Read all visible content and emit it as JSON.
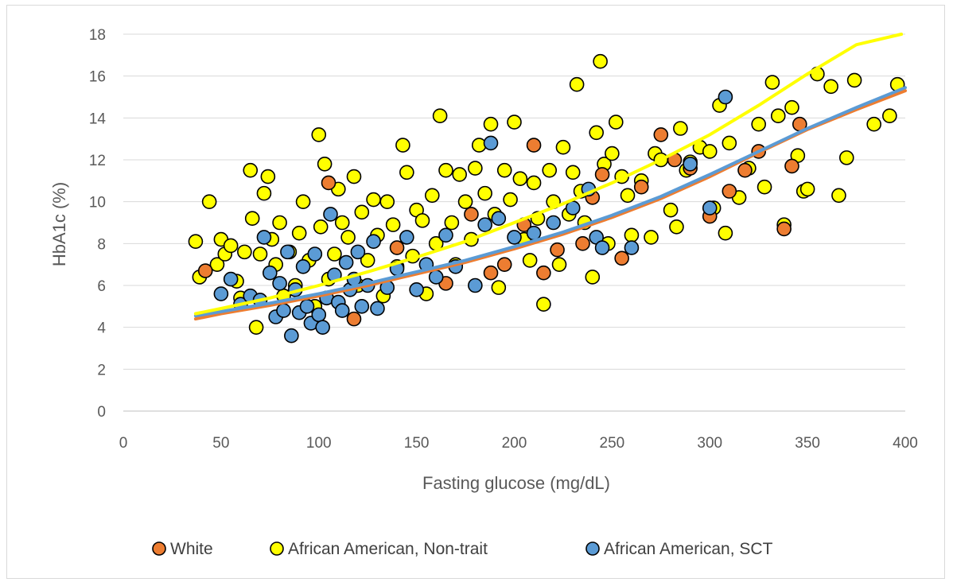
{
  "chart_data": {
    "type": "scatter",
    "xlabel": "Fasting glucose (mg/dL)",
    "ylabel": "HbA1c (%)",
    "xlim": [
      0,
      400
    ],
    "ylim": [
      0,
      18
    ],
    "x_ticks": [
      "0",
      "50",
      "100",
      "150",
      "200",
      "250",
      "300",
      "350",
      "400"
    ],
    "y_ticks": [
      "0",
      "2",
      "4",
      "6",
      "8",
      "10",
      "12",
      "14",
      "16",
      "18"
    ],
    "grid": "horizontal",
    "legend_position": "bottom",
    "series": [
      {
        "name": "African American, Non-trait",
        "color": "#FFFF00",
        "x": [
          37,
          39,
          44,
          48,
          50,
          52,
          55,
          58,
          60,
          62,
          65,
          66,
          68,
          70,
          72,
          74,
          76,
          78,
          80,
          82,
          85,
          88,
          90,
          92,
          95,
          98,
          100,
          101,
          103,
          105,
          108,
          110,
          112,
          115,
          118,
          120,
          122,
          125,
          128,
          130,
          133,
          135,
          138,
          140,
          143,
          145,
          148,
          150,
          153,
          155,
          158,
          160,
          162,
          165,
          168,
          170,
          172,
          175,
          178,
          180,
          182,
          185,
          188,
          190,
          192,
          195,
          198,
          200,
          203,
          205,
          208,
          210,
          212,
          215,
          218,
          220,
          223,
          225,
          228,
          230,
          232,
          234,
          236,
          240,
          242,
          244,
          246,
          248,
          250,
          252,
          255,
          258,
          260,
          265,
          270,
          272,
          275,
          280,
          283,
          285,
          288,
          290,
          295,
          300,
          302,
          305,
          308,
          310,
          315,
          320,
          325,
          328,
          332,
          335,
          338,
          342,
          345,
          348,
          350,
          355,
          362,
          366,
          370,
          374,
          384,
          392,
          396
        ],
        "y": [
          8.1,
          6.4,
          10.0,
          7.0,
          8.2,
          7.5,
          7.9,
          6.2,
          5.4,
          7.6,
          11.5,
          9.2,
          4.0,
          7.5,
          10.4,
          11.2,
          8.2,
          7.0,
          9.0,
          5.5,
          7.6,
          6.0,
          8.5,
          10.0,
          7.2,
          5.0,
          13.2,
          8.8,
          11.8,
          6.3,
          7.5,
          10.6,
          9.0,
          8.3,
          11.2,
          6.0,
          9.5,
          7.2,
          10.1,
          8.4,
          5.5,
          10.0,
          8.9,
          6.9,
          12.7,
          11.4,
          7.4,
          9.6,
          9.1,
          5.6,
          10.3,
          8.0,
          14.1,
          11.5,
          9.0,
          7.0,
          11.3,
          10.0,
          8.2,
          11.6,
          12.7,
          10.4,
          13.7,
          9.4,
          5.9,
          11.5,
          10.1,
          13.8,
          11.1,
          8.2,
          7.2,
          10.9,
          9.2,
          5.1,
          11.5,
          10.0,
          7.0,
          12.6,
          9.4,
          11.4,
          15.6,
          10.5,
          9.0,
          6.4,
          13.3,
          16.7,
          11.8,
          8.0,
          12.3,
          13.8,
          11.2,
          10.3,
          8.4,
          11.0,
          8.3,
          12.3,
          12.0,
          9.6,
          8.8,
          13.5,
          11.5,
          11.9,
          12.6,
          12.4,
          9.7,
          14.6,
          8.5,
          12.8,
          10.2,
          11.6,
          13.7,
          10.7,
          15.7,
          14.1,
          8.9,
          14.5,
          12.2,
          10.5,
          10.6,
          16.1,
          15.5,
          10.3,
          12.1,
          15.8,
          13.7,
          14.1,
          15.6
        ]
      },
      {
        "name": "White",
        "color": "#ED7D31",
        "x": [
          42,
          105,
          118,
          140,
          165,
          178,
          188,
          195,
          205,
          210,
          215,
          222,
          235,
          240,
          245,
          255,
          265,
          275,
          282,
          290,
          300,
          310,
          318,
          325,
          338,
          342,
          346
        ],
        "y": [
          6.7,
          10.9,
          4.4,
          7.8,
          6.1,
          9.4,
          6.6,
          7.0,
          8.9,
          12.7,
          6.6,
          7.7,
          8.0,
          10.2,
          11.3,
          7.3,
          10.7,
          13.2,
          12.0,
          11.6,
          9.3,
          10.5,
          11.5,
          12.4,
          8.7,
          11.7,
          13.7
        ]
      },
      {
        "name": "African American, SCT",
        "color": "#5B9BD5",
        "x": [
          50,
          55,
          60,
          65,
          70,
          72,
          75,
          78,
          80,
          82,
          84,
          86,
          88,
          90,
          92,
          94,
          96,
          98,
          100,
          102,
          104,
          106,
          108,
          110,
          112,
          114,
          116,
          118,
          120,
          122,
          125,
          128,
          130,
          135,
          140,
          145,
          150,
          155,
          160,
          165,
          170,
          180,
          185,
          188,
          192,
          200,
          210,
          220,
          230,
          238,
          242,
          245,
          260,
          290,
          300,
          308
        ],
        "y": [
          5.6,
          6.3,
          5.1,
          5.5,
          5.3,
          8.3,
          6.6,
          4.5,
          6.1,
          4.8,
          7.6,
          3.6,
          5.8,
          4.7,
          6.9,
          5.0,
          4.2,
          7.5,
          4.6,
          4.0,
          5.4,
          9.4,
          6.5,
          5.2,
          4.8,
          7.1,
          5.8,
          6.3,
          7.6,
          5.0,
          6.0,
          8.1,
          4.9,
          5.9,
          6.8,
          8.3,
          5.8,
          7.0,
          6.4,
          8.4,
          6.9,
          6.0,
          8.9,
          12.8,
          9.2,
          8.3,
          8.5,
          9.0,
          9.7,
          10.6,
          8.3,
          7.8,
          7.8,
          11.8,
          9.7,
          15.0
        ]
      }
    ],
    "trendlines": [
      {
        "name": "White",
        "color": "#ED7D31",
        "x": [
          37,
          50,
          75,
          100,
          125,
          150,
          175,
          200,
          225,
          250,
          275,
          300,
          325,
          350,
          375,
          400
        ],
        "y": [
          4.4,
          4.65,
          5.05,
          5.5,
          6.0,
          6.55,
          7.1,
          7.75,
          8.45,
          9.25,
          10.15,
          11.2,
          12.35,
          13.45,
          14.4,
          15.3
        ]
      },
      {
        "name": "African American, SCT",
        "color": "#5B9BD5",
        "x": [
          37,
          50,
          75,
          100,
          125,
          150,
          175,
          200,
          225,
          250,
          275,
          300,
          325,
          350,
          375,
          400
        ],
        "y": [
          4.55,
          4.75,
          5.15,
          5.6,
          6.1,
          6.65,
          7.2,
          7.85,
          8.55,
          9.35,
          10.25,
          11.3,
          12.4,
          13.5,
          14.5,
          15.45
        ]
      },
      {
        "name": "African American, Non-trait",
        "color": "#FFFF00",
        "x": [
          37,
          50,
          75,
          100,
          125,
          150,
          175,
          200,
          225,
          250,
          275,
          300,
          325,
          350,
          375,
          398
        ],
        "y": [
          4.65,
          4.9,
          5.4,
          6.0,
          6.65,
          7.35,
          8.1,
          9.0,
          9.9,
          10.9,
          12.0,
          13.2,
          14.6,
          16.1,
          17.5,
          18.1
        ]
      }
    ]
  },
  "legend": {
    "items": [
      {
        "label": "White",
        "color": "#ED7D31"
      },
      {
        "label": "African American, Non-trait",
        "color": "#FFFF00"
      },
      {
        "label": "African American, SCT",
        "color": "#5B9BD5"
      }
    ]
  }
}
